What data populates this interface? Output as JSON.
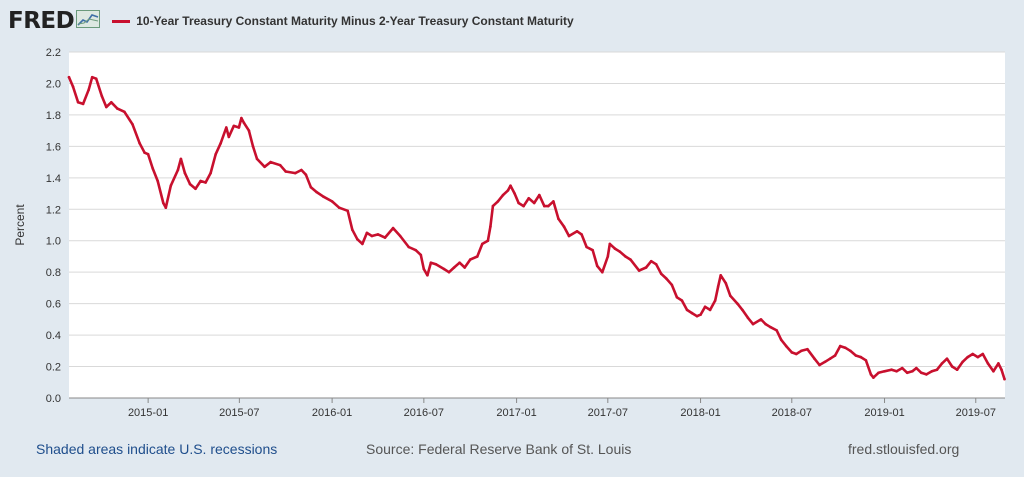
{
  "header": {
    "logo_text": "FRED",
    "logo_icon": "trend-line-icon",
    "series_title": "10-Year Treasury Constant Maturity Minus 2-Year Treasury Constant Maturity"
  },
  "footer": {
    "recession_note": "Shaded areas indicate U.S. recessions",
    "source": "Source: Federal Reserve Bank of St. Louis",
    "site": "fred.stlouisfed.org"
  },
  "colors": {
    "line": "#c8102e",
    "background": "#e1e9f0",
    "plot_background": "#ffffff",
    "grid": "#d9d9d9",
    "link": "#1f4e8c"
  },
  "chart_data": {
    "type": "line",
    "title": "10-Year Treasury Constant Maturity Minus 2-Year Treasury Constant Maturity",
    "xlabel": "",
    "ylabel": "Percent",
    "ylim": [
      0.0,
      2.2
    ],
    "xlim": [
      "2014-07-28",
      "2019-08-28"
    ],
    "yticks": [
      "0.0",
      "0.2",
      "0.4",
      "0.6",
      "0.8",
      "1.0",
      "1.2",
      "1.4",
      "1.6",
      "1.8",
      "2.0",
      "2.2"
    ],
    "xticks": [
      {
        "label": "2015-01",
        "date": "2015-01-01"
      },
      {
        "label": "2015-07",
        "date": "2015-07-01"
      },
      {
        "label": "2016-01",
        "date": "2016-01-01"
      },
      {
        "label": "2016-07",
        "date": "2016-07-01"
      },
      {
        "label": "2017-01",
        "date": "2017-01-01"
      },
      {
        "label": "2017-07",
        "date": "2017-07-01"
      },
      {
        "label": "2018-01",
        "date": "2018-01-01"
      },
      {
        "label": "2018-07",
        "date": "2018-07-01"
      },
      {
        "label": "2019-01",
        "date": "2019-01-01"
      },
      {
        "label": "2019-07",
        "date": "2019-07-01"
      }
    ],
    "grid": true,
    "legend": "top-left",
    "series": [
      {
        "name": "10-Year Treasury Constant Maturity Minus 2-Year Treasury Constant Maturity",
        "points": [
          [
            "2014-07-28",
            2.04
          ],
          [
            "2014-08-05",
            1.98
          ],
          [
            "2014-08-15",
            1.88
          ],
          [
            "2014-08-25",
            1.87
          ],
          [
            "2014-09-05",
            1.96
          ],
          [
            "2014-09-12",
            2.04
          ],
          [
            "2014-09-20",
            2.03
          ],
          [
            "2014-10-01",
            1.92
          ],
          [
            "2014-10-10",
            1.85
          ],
          [
            "2014-10-20",
            1.88
          ],
          [
            "2014-11-01",
            1.84
          ],
          [
            "2014-11-15",
            1.82
          ],
          [
            "2014-12-01",
            1.74
          ],
          [
            "2014-12-15",
            1.62
          ],
          [
            "2014-12-25",
            1.56
          ],
          [
            "2015-01-01",
            1.55
          ],
          [
            "2015-01-10",
            1.46
          ],
          [
            "2015-01-20",
            1.38
          ],
          [
            "2015-01-31",
            1.24
          ],
          [
            "2015-02-05",
            1.21
          ],
          [
            "2015-02-15",
            1.35
          ],
          [
            "2015-03-01",
            1.45
          ],
          [
            "2015-03-07",
            1.52
          ],
          [
            "2015-03-15",
            1.43
          ],
          [
            "2015-03-25",
            1.36
          ],
          [
            "2015-04-05",
            1.33
          ],
          [
            "2015-04-15",
            1.38
          ],
          [
            "2015-04-25",
            1.37
          ],
          [
            "2015-05-05",
            1.43
          ],
          [
            "2015-05-15",
            1.55
          ],
          [
            "2015-05-25",
            1.62
          ],
          [
            "2015-06-05",
            1.72
          ],
          [
            "2015-06-10",
            1.66
          ],
          [
            "2015-06-20",
            1.73
          ],
          [
            "2015-06-30",
            1.72
          ],
          [
            "2015-07-05",
            1.78
          ],
          [
            "2015-07-10",
            1.75
          ],
          [
            "2015-07-20",
            1.7
          ],
          [
            "2015-07-28",
            1.6
          ],
          [
            "2015-08-05",
            1.52
          ],
          [
            "2015-08-20",
            1.47
          ],
          [
            "2015-09-01",
            1.5
          ],
          [
            "2015-09-20",
            1.48
          ],
          [
            "2015-10-01",
            1.44
          ],
          [
            "2015-10-20",
            1.43
          ],
          [
            "2015-11-01",
            1.45
          ],
          [
            "2015-11-10",
            1.42
          ],
          [
            "2015-11-20",
            1.34
          ],
          [
            "2015-12-01",
            1.31
          ],
          [
            "2015-12-15",
            1.28
          ],
          [
            "2016-01-01",
            1.25
          ],
          [
            "2016-01-15",
            1.21
          ],
          [
            "2016-02-01",
            1.19
          ],
          [
            "2016-02-10",
            1.07
          ],
          [
            "2016-02-20",
            1.01
          ],
          [
            "2016-03-01",
            0.98
          ],
          [
            "2016-03-10",
            1.05
          ],
          [
            "2016-03-20",
            1.03
          ],
          [
            "2016-04-01",
            1.04
          ],
          [
            "2016-04-15",
            1.02
          ],
          [
            "2016-05-01",
            1.08
          ],
          [
            "2016-05-15",
            1.03
          ],
          [
            "2016-06-01",
            0.96
          ],
          [
            "2016-06-15",
            0.94
          ],
          [
            "2016-06-25",
            0.91
          ],
          [
            "2016-07-01",
            0.82
          ],
          [
            "2016-07-08",
            0.78
          ],
          [
            "2016-07-15",
            0.86
          ],
          [
            "2016-07-25",
            0.85
          ],
          [
            "2016-08-10",
            0.82
          ],
          [
            "2016-08-20",
            0.8
          ],
          [
            "2016-08-30",
            0.83
          ],
          [
            "2016-09-10",
            0.86
          ],
          [
            "2016-09-20",
            0.83
          ],
          [
            "2016-10-01",
            0.88
          ],
          [
            "2016-10-15",
            0.9
          ],
          [
            "2016-10-25",
            0.98
          ],
          [
            "2016-11-05",
            1.0
          ],
          [
            "2016-11-10",
            1.09
          ],
          [
            "2016-11-15",
            1.22
          ],
          [
            "2016-11-25",
            1.25
          ],
          [
            "2016-12-05",
            1.29
          ],
          [
            "2016-12-15",
            1.32
          ],
          [
            "2016-12-20",
            1.35
          ],
          [
            "2016-12-28",
            1.3
          ],
          [
            "2017-01-05",
            1.24
          ],
          [
            "2017-01-15",
            1.22
          ],
          [
            "2017-01-25",
            1.27
          ],
          [
            "2017-02-05",
            1.24
          ],
          [
            "2017-02-15",
            1.29
          ],
          [
            "2017-02-25",
            1.22
          ],
          [
            "2017-03-05",
            1.22
          ],
          [
            "2017-03-15",
            1.25
          ],
          [
            "2017-03-25",
            1.14
          ],
          [
            "2017-04-05",
            1.09
          ],
          [
            "2017-04-15",
            1.03
          ],
          [
            "2017-05-01",
            1.06
          ],
          [
            "2017-05-10",
            1.04
          ],
          [
            "2017-05-20",
            0.96
          ],
          [
            "2017-06-01",
            0.94
          ],
          [
            "2017-06-10",
            0.84
          ],
          [
            "2017-06-20",
            0.8
          ],
          [
            "2017-07-01",
            0.9
          ],
          [
            "2017-07-05",
            0.98
          ],
          [
            "2017-07-15",
            0.95
          ],
          [
            "2017-07-25",
            0.93
          ],
          [
            "2017-08-05",
            0.9
          ],
          [
            "2017-08-15",
            0.88
          ],
          [
            "2017-09-01",
            0.81
          ],
          [
            "2017-09-15",
            0.83
          ],
          [
            "2017-09-25",
            0.87
          ],
          [
            "2017-10-05",
            0.85
          ],
          [
            "2017-10-15",
            0.79
          ],
          [
            "2017-10-25",
            0.76
          ],
          [
            "2017-11-05",
            0.72
          ],
          [
            "2017-11-15",
            0.64
          ],
          [
            "2017-11-25",
            0.62
          ],
          [
            "2017-12-05",
            0.56
          ],
          [
            "2017-12-15",
            0.54
          ],
          [
            "2017-12-25",
            0.52
          ],
          [
            "2018-01-01",
            0.53
          ],
          [
            "2018-01-10",
            0.58
          ],
          [
            "2018-01-20",
            0.56
          ],
          [
            "2018-01-30",
            0.62
          ],
          [
            "2018-02-05",
            0.71
          ],
          [
            "2018-02-10",
            0.78
          ],
          [
            "2018-02-20",
            0.73
          ],
          [
            "2018-03-01",
            0.65
          ],
          [
            "2018-03-15",
            0.6
          ],
          [
            "2018-03-25",
            0.56
          ],
          [
            "2018-04-05",
            0.51
          ],
          [
            "2018-04-15",
            0.47
          ],
          [
            "2018-05-01",
            0.5
          ],
          [
            "2018-05-10",
            0.47
          ],
          [
            "2018-05-20",
            0.45
          ],
          [
            "2018-06-01",
            0.43
          ],
          [
            "2018-06-10",
            0.37
          ],
          [
            "2018-06-20",
            0.33
          ],
          [
            "2018-07-01",
            0.29
          ],
          [
            "2018-07-10",
            0.28
          ],
          [
            "2018-07-20",
            0.3
          ],
          [
            "2018-08-01",
            0.31
          ],
          [
            "2018-08-15",
            0.25
          ],
          [
            "2018-08-25",
            0.21
          ],
          [
            "2018-09-05",
            0.23
          ],
          [
            "2018-09-15",
            0.25
          ],
          [
            "2018-09-25",
            0.27
          ],
          [
            "2018-10-05",
            0.33
          ],
          [
            "2018-10-15",
            0.32
          ],
          [
            "2018-10-25",
            0.3
          ],
          [
            "2018-11-05",
            0.27
          ],
          [
            "2018-11-15",
            0.26
          ],
          [
            "2018-11-25",
            0.24
          ],
          [
            "2018-12-05",
            0.15
          ],
          [
            "2018-12-10",
            0.13
          ],
          [
            "2018-12-20",
            0.16
          ],
          [
            "2019-01-01",
            0.17
          ],
          [
            "2019-01-15",
            0.18
          ],
          [
            "2019-01-25",
            0.17
          ],
          [
            "2019-02-05",
            0.19
          ],
          [
            "2019-02-15",
            0.16
          ],
          [
            "2019-02-25",
            0.17
          ],
          [
            "2019-03-05",
            0.19
          ],
          [
            "2019-03-15",
            0.16
          ],
          [
            "2019-03-25",
            0.15
          ],
          [
            "2019-04-05",
            0.17
          ],
          [
            "2019-04-15",
            0.18
          ],
          [
            "2019-04-25",
            0.22
          ],
          [
            "2019-05-05",
            0.25
          ],
          [
            "2019-05-15",
            0.2
          ],
          [
            "2019-05-25",
            0.18
          ],
          [
            "2019-06-05",
            0.23
          ],
          [
            "2019-06-15",
            0.26
          ],
          [
            "2019-06-25",
            0.28
          ],
          [
            "2019-07-05",
            0.26
          ],
          [
            "2019-07-15",
            0.28
          ],
          [
            "2019-07-25",
            0.22
          ],
          [
            "2019-08-05",
            0.17
          ],
          [
            "2019-08-15",
            0.22
          ],
          [
            "2019-08-21",
            0.18
          ],
          [
            "2019-08-27",
            0.12
          ]
        ]
      }
    ]
  }
}
